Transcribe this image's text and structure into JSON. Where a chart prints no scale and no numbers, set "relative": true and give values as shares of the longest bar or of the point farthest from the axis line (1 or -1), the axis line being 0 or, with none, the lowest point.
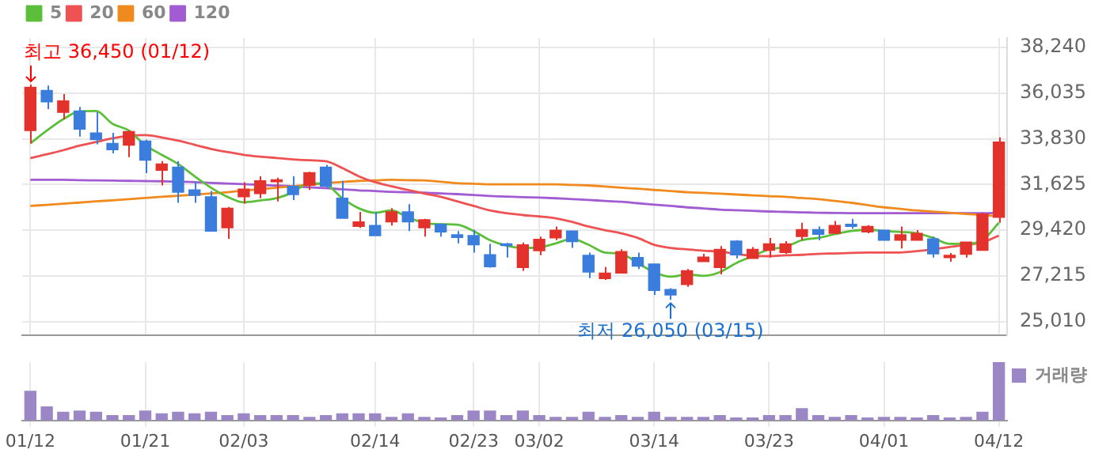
{
  "chart_data": [
    {
      "type": "candlestick",
      "categories": [
        "01/12",
        null,
        null,
        null,
        null,
        null,
        null,
        "01/21",
        null,
        null,
        null,
        null,
        null,
        "02/03",
        null,
        null,
        null,
        null,
        null,
        null,
        null,
        "02/14",
        null,
        null,
        null,
        null,
        null,
        "02/23",
        null,
        null,
        null,
        "03/02",
        null,
        null,
        null,
        null,
        null,
        null,
        "03/14",
        null,
        null,
        null,
        null,
        null,
        null,
        "03/23",
        null,
        null,
        null,
        null,
        null,
        null,
        "04/01",
        null,
        null,
        null,
        null,
        null,
        null,
        "04/12"
      ],
      "ohlc": [
        [
          34227,
          36450,
          33610,
          36322
        ],
        [
          36167,
          36400,
          35263,
          35616
        ],
        [
          35109,
          35991,
          34778,
          35660
        ],
        [
          35175,
          35373,
          33940,
          34293
        ],
        [
          34117,
          35109,
          33565,
          33786
        ],
        [
          33610,
          34117,
          33124,
          33301
        ],
        [
          33521,
          34227,
          32948,
          34183
        ],
        [
          33720,
          33786,
          32176,
          32794
        ],
        [
          32309,
          32750,
          31581,
          32617
        ],
        [
          32463,
          32750,
          30743,
          31250
        ],
        [
          31360,
          31757,
          30743,
          31096
        ],
        [
          31030,
          31316,
          29376,
          29376
        ],
        [
          29530,
          30544,
          29001,
          30478
        ],
        [
          31030,
          31735,
          30699,
          31405
        ],
        [
          31184,
          32022,
          30963,
          31801
        ],
        [
          31757,
          31956,
          30809,
          31846
        ],
        [
          31537,
          32022,
          30875,
          31140
        ],
        [
          31581,
          32242,
          31360,
          32198
        ],
        [
          32463,
          32573,
          31471,
          31537
        ],
        [
          30963,
          31801,
          29993,
          29993
        ],
        [
          29597,
          30302,
          29530,
          29817
        ],
        [
          29641,
          30302,
          29156,
          29156
        ],
        [
          29817,
          30478,
          29641,
          30302
        ],
        [
          30302,
          30677,
          29376,
          29817
        ],
        [
          29530,
          29971,
          29104,
          29927
        ],
        [
          29707,
          29751,
          29104,
          29332
        ],
        [
          29200,
          29376,
          28780,
          29067
        ],
        [
          29156,
          29442,
          28339,
          28714
        ],
        [
          28229,
          28758,
          27612,
          27656
        ],
        [
          28758,
          28802,
          28097,
          28670
        ],
        [
          27612,
          28824,
          27458,
          28714
        ],
        [
          28427,
          29112,
          28207,
          28979
        ],
        [
          29045,
          29597,
          28935,
          29420
        ],
        [
          29376,
          29376,
          28560,
          28869
        ],
        [
          28207,
          28339,
          27105,
          27392
        ],
        [
          27083,
          27634,
          27017,
          27348
        ],
        [
          27348,
          28494,
          27348,
          28383
        ],
        [
          28097,
          28339,
          27546,
          27678
        ],
        [
          27788,
          27788,
          26289,
          26510
        ],
        [
          26554,
          26620,
          26050,
          26289
        ],
        [
          26796,
          27546,
          26686,
          27458
        ],
        [
          27899,
          28273,
          27899,
          28119
        ],
        [
          27612,
          28648,
          27282,
          28494
        ],
        [
          28890,
          28935,
          28053,
          28229
        ],
        [
          28053,
          28604,
          28053,
          28494
        ],
        [
          28450,
          29045,
          28097,
          28758
        ],
        [
          28340,
          28890,
          28273,
          28758
        ],
        [
          29111,
          29773,
          28935,
          29442
        ],
        [
          29442,
          29597,
          28935,
          29222
        ],
        [
          29266,
          29861,
          29266,
          29641
        ],
        [
          29707,
          29971,
          29486,
          29597
        ],
        [
          29332,
          29663,
          29266,
          29597
        ],
        [
          29420,
          29420,
          28935,
          28935
        ],
        [
          28935,
          29597,
          28538,
          29200
        ],
        [
          28935,
          29420,
          28935,
          29266
        ],
        [
          29001,
          29112,
          28097,
          28273
        ],
        [
          28097,
          28318,
          27899,
          28207
        ],
        [
          28251,
          28846,
          28097,
          28846
        ],
        [
          28450,
          30258,
          28450,
          30192
        ],
        [
          30038,
          33896,
          29773,
          33676
        ]
      ],
      "series": [
        {
          "name": "5",
          "type": "line",
          "color": "#5cbf3a",
          "values": [
            33610,
            34227,
            34778,
            35153,
            35175,
            34558,
            34227,
            33521,
            33058,
            32617,
            32022,
            31471,
            31030,
            30765,
            30853,
            30963,
            31250,
            31691,
            31625,
            30963,
            30478,
            30258,
            30368,
            30037,
            29773,
            29707,
            29685,
            29376,
            28935,
            28670,
            28560,
            28582,
            28781,
            29001,
            28714,
            28340,
            28273,
            27832,
            27391,
            27171,
            27281,
            27215,
            27391,
            27832,
            28163,
            28494,
            28604,
            28935,
            29045,
            29222,
            29376,
            29442,
            29376,
            29332,
            29266,
            29045,
            28758,
            28758,
            28935,
            29773
          ]
        },
        {
          "name": "20",
          "type": "line",
          "color": "#ee5252",
          "values": [
            32904,
            33080,
            33279,
            33499,
            33676,
            33852,
            33984,
            34006,
            33896,
            33742,
            33543,
            33345,
            33191,
            33058,
            32970,
            32904,
            32838,
            32794,
            32750,
            32419,
            32022,
            31735,
            31537,
            31360,
            31184,
            31030,
            30809,
            30589,
            30368,
            30236,
            30148,
            30081,
            29993,
            29817,
            29596,
            29420,
            29266,
            29045,
            28714,
            28560,
            28494,
            28428,
            28384,
            28273,
            28185,
            28163,
            28207,
            28229,
            28273,
            28295,
            28317,
            28340,
            28340,
            28340,
            28406,
            28494,
            28604,
            28714,
            28825,
            29155
          ]
        },
        {
          "name": "60",
          "type": "line",
          "color": "#f08a1c",
          "values": [
            30590,
            30640,
            30700,
            30750,
            30810,
            30860,
            30920,
            30970,
            31030,
            31080,
            31140,
            31190,
            31250,
            31330,
            31400,
            31470,
            31540,
            31610,
            31690,
            31750,
            31800,
            31820,
            31850,
            31830,
            31820,
            31760,
            31690,
            31660,
            31630,
            31630,
            31630,
            31630,
            31630,
            31600,
            31580,
            31530,
            31470,
            31420,
            31360,
            31310,
            31250,
            31220,
            31180,
            31140,
            31100,
            31060,
            31030,
            30970,
            30920,
            30830,
            30740,
            30630,
            30520,
            30450,
            30370,
            30310,
            30260,
            30200,
            30150,
            30080
          ]
        },
        {
          "name": "120",
          "type": "line",
          "color": "#a05cd0",
          "values": [
            31850,
            31850,
            31850,
            31830,
            31820,
            31810,
            31800,
            31790,
            31780,
            31760,
            31740,
            31700,
            31670,
            31640,
            31600,
            31570,
            31540,
            31490,
            31450,
            31390,
            31340,
            31310,
            31270,
            31250,
            31230,
            31190,
            31160,
            31120,
            31070,
            31040,
            31010,
            30990,
            30960,
            30920,
            30880,
            30830,
            30790,
            30720,
            30650,
            30590,
            30520,
            30470,
            30410,
            30380,
            30350,
            30320,
            30300,
            30280,
            30260,
            30250,
            30240,
            30240,
            30240,
            30240,
            30240,
            30240,
            30240,
            30240,
            30240,
            30260
          ]
        }
      ],
      "ylim": [
        24360,
        38700
      ],
      "yticks": [
        {
          "value": 25010,
          "label": "25,010"
        },
        {
          "value": 27215,
          "label": "27,215"
        },
        {
          "value": 29420,
          "label": "29,420"
        },
        {
          "value": 31625,
          "label": "31,625"
        },
        {
          "value": 33830,
          "label": "33,830"
        },
        {
          "value": 36035,
          "label": "36,035"
        },
        {
          "value": 38240,
          "label": "38,240"
        }
      ],
      "grid": true,
      "legend": "top left",
      "tick_labels": "y",
      "annotations": [
        {
          "text": "최고 36,450 (01/12)",
          "x": "01/12",
          "y": 36450
        },
        {
          "text": "최저 26,050 (03/15)",
          "y": 26050
        }
      ]
    },
    {
      "type": "bar",
      "categories": [
        "01/12",
        null,
        null,
        null,
        null,
        null,
        null,
        "01/21",
        null,
        null,
        null,
        null,
        null,
        "02/03",
        null,
        null,
        null,
        null,
        null,
        null,
        null,
        "02/14",
        null,
        null,
        null,
        null,
        null,
        "02/23",
        null,
        null,
        null,
        "03/02",
        null,
        null,
        null,
        null,
        null,
        null,
        "03/14",
        null,
        null,
        null,
        null,
        null,
        null,
        "03/23",
        null,
        null,
        null,
        null,
        null,
        null,
        "04/01",
        null,
        null,
        null,
        null,
        null,
        null,
        "04/12"
      ],
      "series": [
        {
          "name": "거래량",
          "color": "#9b86c6",
          "values": [
            0.5,
            0.23,
            0.14,
            0.16,
            0.14,
            0.08,
            0.08,
            0.16,
            0.11,
            0.14,
            0.11,
            0.14,
            0.08,
            0.11,
            0.08,
            0.08,
            0.08,
            0.05,
            0.08,
            0.11,
            0.11,
            0.11,
            0.05,
            0.11,
            0.05,
            0.04,
            0.08,
            0.16,
            0.16,
            0.08,
            0.16,
            0.08,
            0.05,
            0.05,
            0.14,
            0.05,
            0.08,
            0.05,
            0.14,
            0.05,
            0.05,
            0.05,
            0.08,
            0.04,
            0.04,
            0.08,
            0.08,
            0.2,
            0.08,
            0.05,
            0.08,
            0.04,
            0.05,
            0.05,
            0.04,
            0.08,
            0.04,
            0.05,
            0.14,
            1
          ]
        }
      ],
      "relative": true,
      "grid": "x",
      "legend": "top right",
      "tick_labels": "x"
    }
  ]
}
